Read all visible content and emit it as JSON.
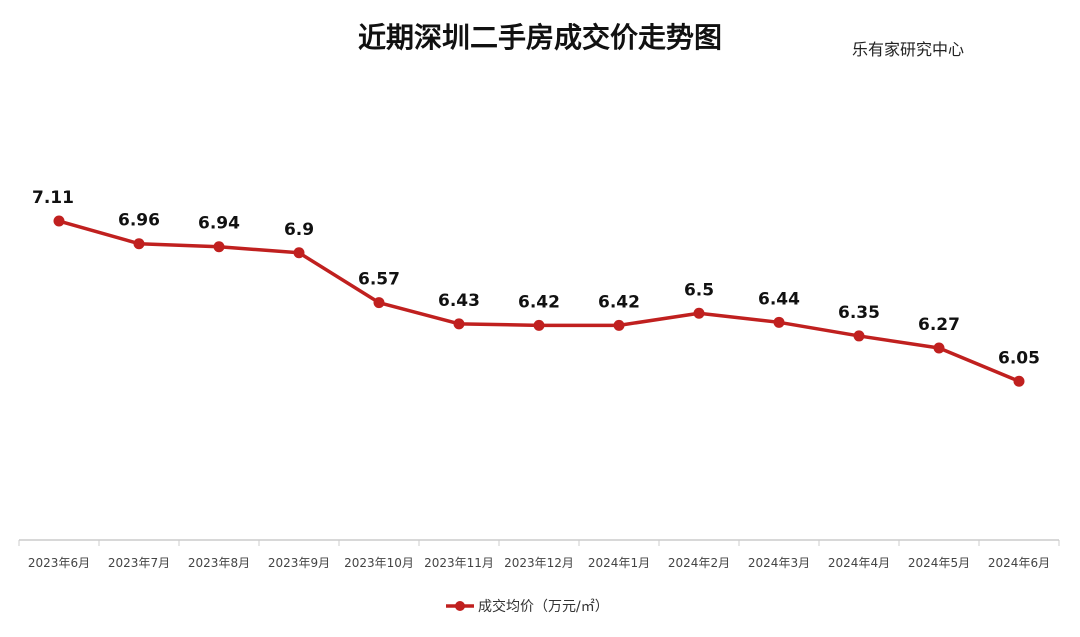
{
  "chart_data": {
    "type": "line",
    "title": "近期深圳二手房成交价走势图",
    "source": "乐有家研究中心",
    "categories": [
      "2023年6月",
      "2023年7月",
      "2023年8月",
      "2023年9月",
      "2023年10月",
      "2023年11月",
      "2023年12月",
      "2024年1月",
      "2024年2月",
      "2024年3月",
      "2024年4月",
      "2024年5月",
      "2024年6月"
    ],
    "series": [
      {
        "name": "成交均价（万元/㎡）",
        "values": [
          7.11,
          6.96,
          6.94,
          6.9,
          6.57,
          6.43,
          6.42,
          6.42,
          6.5,
          6.44,
          6.35,
          6.27,
          6.05
        ],
        "color": "#c0201f"
      }
    ],
    "ylim": [
      5,
      8
    ],
    "grid": false,
    "legend": "bottom"
  }
}
